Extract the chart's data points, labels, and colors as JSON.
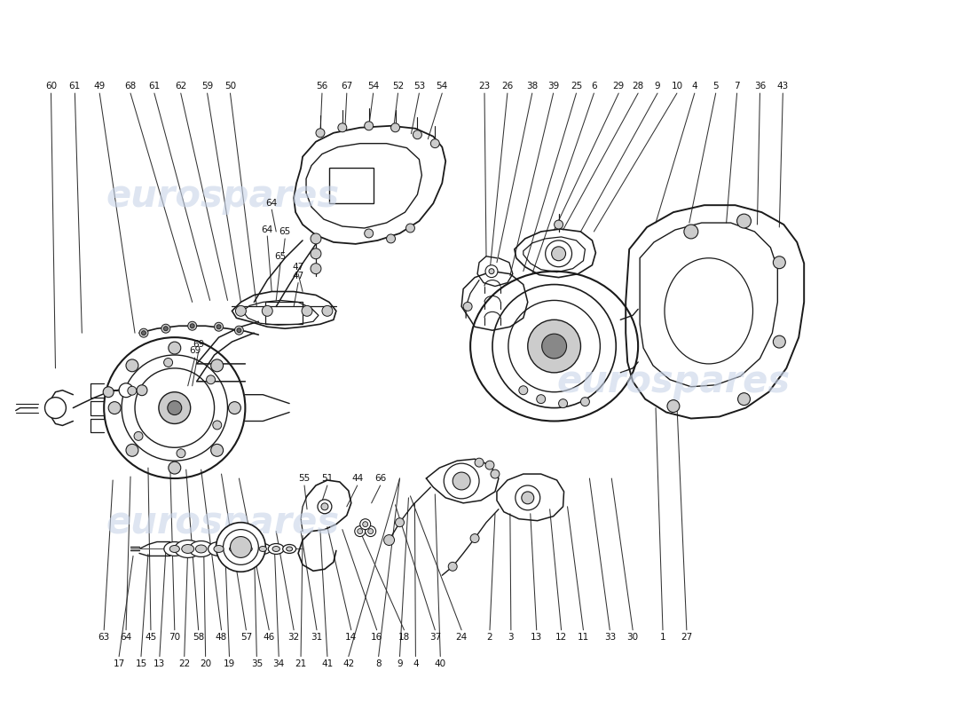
{
  "bg_color": "#ffffff",
  "watermark_text": "eurospares",
  "watermark_color": "#c8d4e8",
  "fig_width": 11.0,
  "fig_height": 8.0,
  "line_color": "#1a1a1a",
  "label_color": "#111111",
  "label_fontsize": 7.5,
  "leader_color": "#333333",
  "leader_lw": 0.75,
  "part_lw": 1.2
}
